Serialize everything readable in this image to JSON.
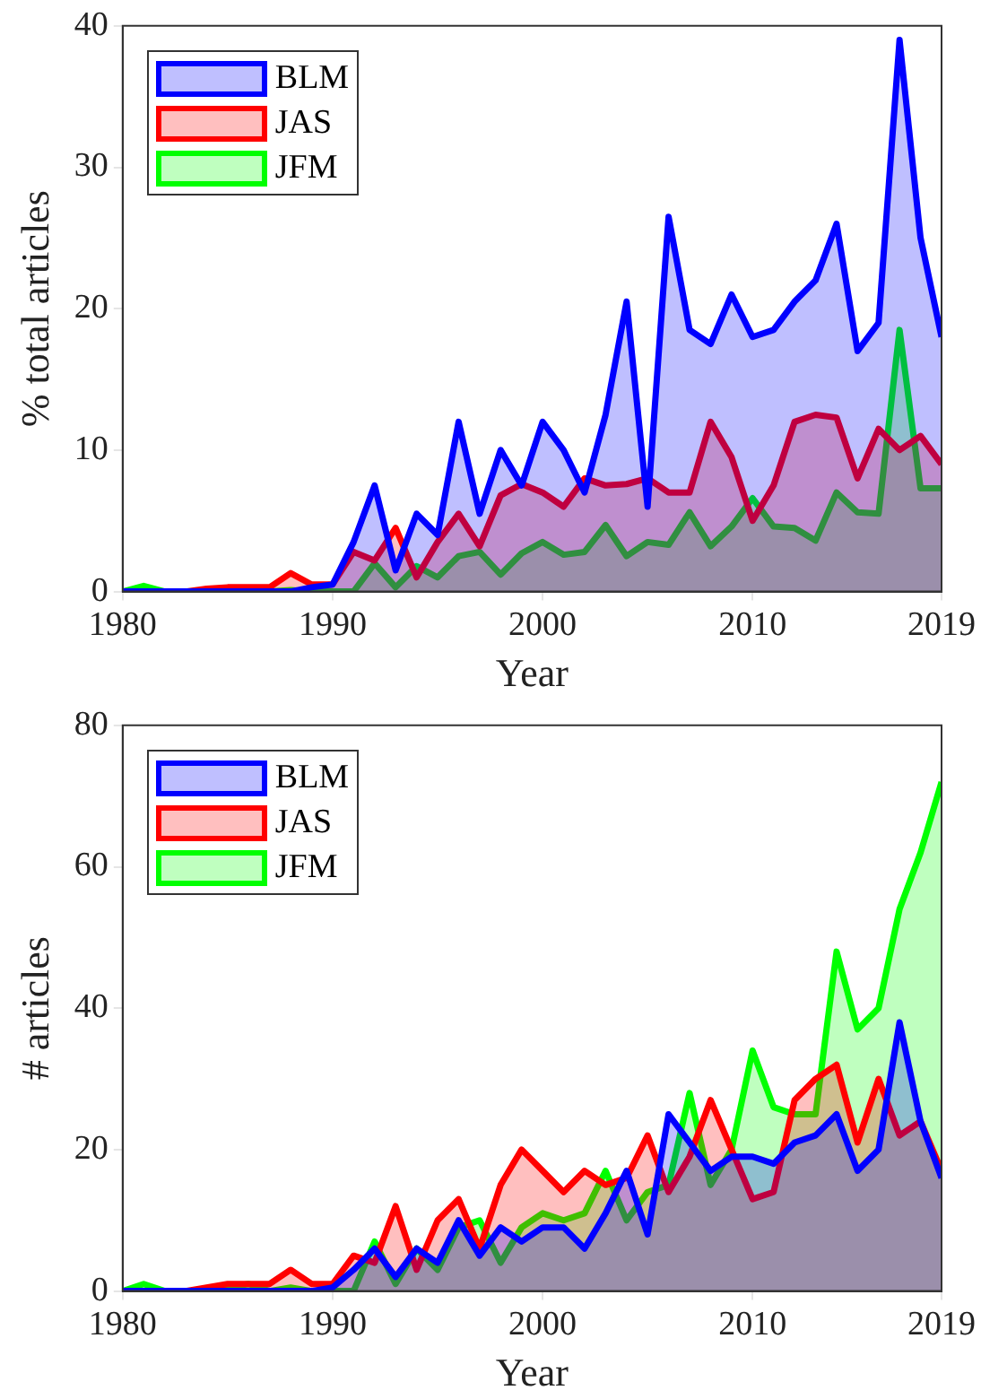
{
  "chart_data": [
    {
      "type": "area",
      "xlabel": "Year",
      "ylabel": "% total articles",
      "x": [
        1980,
        1981,
        1982,
        1983,
        1984,
        1985,
        1986,
        1987,
        1988,
        1989,
        1990,
        1991,
        1992,
        1993,
        1994,
        1995,
        1996,
        1997,
        1998,
        1999,
        2000,
        2001,
        2002,
        2003,
        2004,
        2005,
        2006,
        2007,
        2008,
        2009,
        2010,
        2011,
        2012,
        2013,
        2014,
        2015,
        2016,
        2017,
        2018,
        2019
      ],
      "xlim": [
        1980,
        2019
      ],
      "xticks": [
        1980,
        1990,
        2000,
        2010,
        2019
      ],
      "ylim": [
        0,
        40
      ],
      "yticks": [
        0,
        10,
        20,
        30,
        40
      ],
      "grid": false,
      "legend": "top left",
      "series": [
        {
          "name": "BLM",
          "color": "#0000ff",
          "values": [
            0,
            0,
            0,
            0,
            0,
            0,
            0,
            0,
            0,
            0.3,
            0.5,
            3.5,
            7.5,
            1.5,
            5.5,
            4,
            12,
            5.5,
            10,
            7.5,
            12,
            10,
            7,
            12.5,
            20.5,
            6,
            26.5,
            18.5,
            17.5,
            21,
            18,
            18.5,
            20.5,
            22,
            26,
            17,
            19,
            39,
            25,
            18
          ]
        },
        {
          "name": "JAS",
          "color": "#ff0000",
          "values": [
            0,
            0,
            0,
            0,
            0.2,
            0.3,
            0.3,
            0.3,
            1.3,
            0.5,
            0.5,
            2.8,
            2.2,
            4.5,
            1,
            3.5,
            5.5,
            3.2,
            6.8,
            7.6,
            7,
            6,
            8,
            7.5,
            7.6,
            8,
            7,
            7,
            12,
            9.5,
            5,
            7.5,
            12,
            12.5,
            12.3,
            8,
            11.5,
            10,
            11,
            9
          ]
        },
        {
          "name": "JFM",
          "color": "#00ff00",
          "values": [
            0,
            0.4,
            0,
            0,
            0,
            0.2,
            0.2,
            0,
            0.1,
            0,
            0,
            0,
            2,
            0.3,
            1.8,
            1,
            2.5,
            2.8,
            1.2,
            2.7,
            3.5,
            2.6,
            2.8,
            4.7,
            2.5,
            3.5,
            3.3,
            5.6,
            3.2,
            4.6,
            6.6,
            4.6,
            4.5,
            3.6,
            7,
            5.6,
            5.5,
            18.5,
            7.3,
            7.3
          ]
        }
      ]
    },
    {
      "type": "area",
      "xlabel": "Year",
      "ylabel": "# articles",
      "x": [
        1980,
        1981,
        1982,
        1983,
        1984,
        1985,
        1986,
        1987,
        1988,
        1989,
        1990,
        1991,
        1992,
        1993,
        1994,
        1995,
        1996,
        1997,
        1998,
        1999,
        2000,
        2001,
        2002,
        2003,
        2004,
        2005,
        2006,
        2007,
        2008,
        2009,
        2010,
        2011,
        2012,
        2013,
        2014,
        2015,
        2016,
        2017,
        2018,
        2019
      ],
      "xlim": [
        1980,
        2019
      ],
      "xticks": [
        1980,
        1990,
        2000,
        2010,
        2019
      ],
      "ylim": [
        0,
        80
      ],
      "yticks": [
        0,
        20,
        40,
        60,
        80
      ],
      "grid": false,
      "legend": "top left",
      "series": [
        {
          "name": "BLM",
          "color": "#0000ff",
          "values": [
            0,
            0,
            0,
            0,
            0,
            0,
            0,
            0,
            0,
            0,
            0.5,
            3,
            6,
            2,
            6,
            4,
            10,
            5,
            9,
            7,
            9,
            9,
            6,
            11,
            17,
            8,
            25,
            21,
            17,
            19,
            19,
            18,
            21,
            22,
            25,
            17,
            20,
            38,
            24,
            16
          ]
        },
        {
          "name": "JAS",
          "color": "#ff0000",
          "values": [
            0,
            0,
            0,
            0,
            0.5,
            1,
            1,
            1,
            3,
            1,
            1,
            5,
            4,
            12,
            3,
            10,
            13,
            6,
            15,
            20,
            17,
            14,
            17,
            15,
            16,
            22,
            14,
            19,
            27,
            20,
            13,
            14,
            27,
            30,
            32,
            21,
            30,
            22,
            24,
            17
          ]
        },
        {
          "name": "JFM",
          "color": "#00ff00",
          "values": [
            0,
            1,
            0,
            0,
            0,
            0.5,
            1,
            0,
            0.5,
            0,
            0,
            0,
            7,
            1,
            6,
            3,
            9,
            10,
            4,
            9,
            11,
            10,
            11,
            17,
            10,
            14,
            15,
            28,
            15,
            20,
            34,
            26,
            25,
            25,
            48,
            37,
            40,
            54,
            62,
            72
          ]
        }
      ]
    }
  ]
}
